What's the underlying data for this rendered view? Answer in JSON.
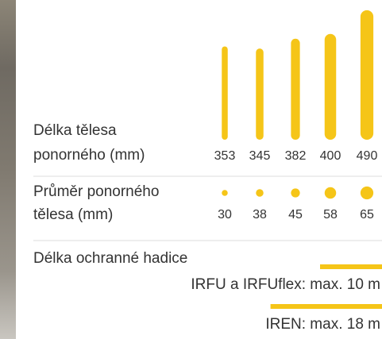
{
  "length_label": [
    "Délka tělesa",
    "ponorného (mm)"
  ],
  "lengths": [
    353,
    345,
    382,
    400,
    490
  ],
  "diameter_label": [
    "Průměr ponorného",
    "tělesa (mm)"
  ],
  "diameters": [
    30,
    38,
    45,
    58,
    65
  ],
  "hose_title": "Délka ochranné hadice",
  "hoses": [
    {
      "label": "IRFU a IRFUflex: max. 10 m",
      "length": 10
    },
    {
      "label": "IREN: max. 18 m",
      "length": 18
    }
  ],
  "color": "#f5c518"
}
